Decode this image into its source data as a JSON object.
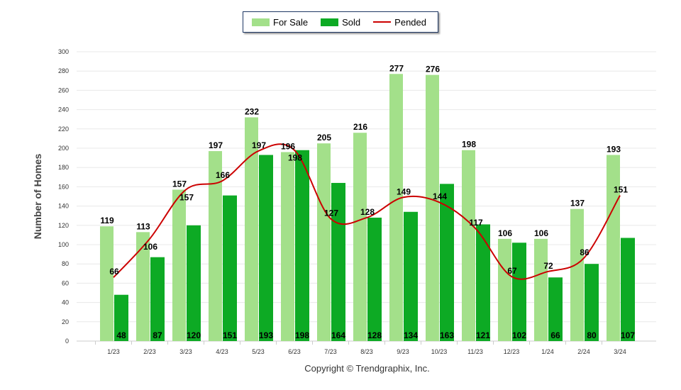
{
  "legend": {
    "for_sale": "For Sale",
    "sold": "Sold",
    "pended": "Pended"
  },
  "copyright": "Copyright © Trendgraphix, Inc.",
  "colors": {
    "for_sale": "#a3e08a",
    "sold": "#0daa24",
    "pended": "#cc0000"
  },
  "chart_data": {
    "type": "bar",
    "title": "",
    "xlabel": "",
    "ylabel": "Number of Homes",
    "ylim": [
      0,
      300
    ],
    "yticks": [
      0,
      20,
      40,
      60,
      80,
      100,
      120,
      140,
      160,
      180,
      200,
      220,
      240,
      260,
      280,
      300
    ],
    "categories": [
      "1/23",
      "2/23",
      "3/23",
      "4/23",
      "5/23",
      "6/23",
      "7/23",
      "8/23",
      "9/23",
      "10/23",
      "11/23",
      "12/23",
      "1/24",
      "2/24",
      "3/24"
    ],
    "series": [
      {
        "name": "For Sale",
        "type": "bar",
        "values": [
          119,
          113,
          157,
          197,
          232,
          196,
          205,
          216,
          277,
          276,
          198,
          106,
          106,
          137,
          193
        ]
      },
      {
        "name": "Sold",
        "type": "bar",
        "values": [
          48,
          87,
          120,
          151,
          193,
          198,
          164,
          128,
          134,
          163,
          121,
          102,
          66,
          80,
          107
        ]
      },
      {
        "name": "Pended",
        "type": "line",
        "values": [
          66,
          106,
          157,
          166,
          197,
          198,
          127,
          128,
          149,
          144,
          117,
          67,
          72,
          86,
          151
        ]
      }
    ],
    "legend_position": "top-center",
    "grid": true
  }
}
